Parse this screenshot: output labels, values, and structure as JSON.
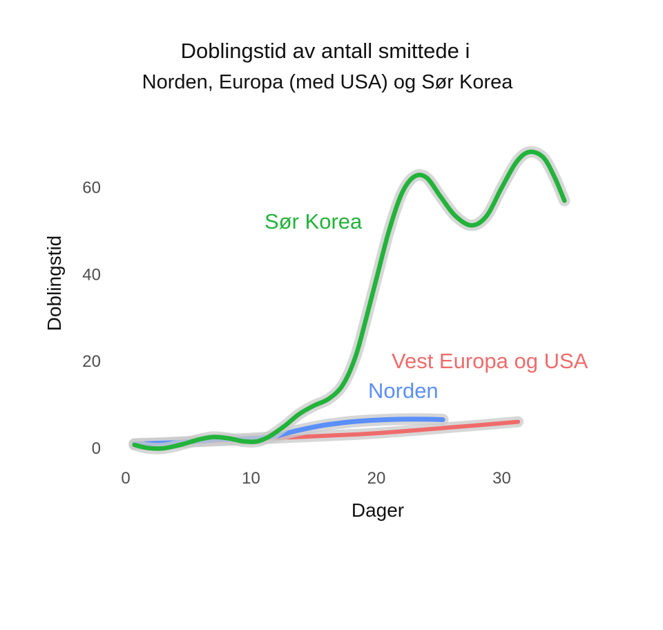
{
  "title_line1": "Doblingstid av antall smittede i",
  "title_line2": "Norden, Europa (med USA) og Sør Korea",
  "chart_data": {
    "type": "line",
    "title": "Doblingstid av antall smittede i Norden, Europa (med USA) og Sør Korea",
    "xlabel": "Dager",
    "ylabel": "Doblingstid",
    "xlim": [
      -0.5,
      36
    ],
    "ylim": [
      -3,
      71
    ],
    "xticks": [
      0,
      10,
      20,
      30
    ],
    "yticks": [
      0,
      20,
      40,
      60
    ],
    "xtick_labels": [
      "0",
      "10",
      "20",
      "30"
    ],
    "ytick_labels": [
      "0",
      "20",
      "40",
      "60"
    ],
    "grid": false,
    "legend": "direct labels on lines",
    "series": [
      {
        "name": "Sør Korea",
        "color": "#22b33a",
        "x": [
          0.7,
          1.7,
          3.0,
          4.5,
          5.8,
          7.0,
          8.2,
          9.4,
          10.5,
          11.5,
          12.7,
          13.8,
          15.0,
          16.2,
          17.3,
          18.3,
          19.1,
          20.0,
          21.0,
          22.0,
          23.0,
          24.0,
          25.1,
          26.3,
          27.6,
          28.8,
          30.0,
          31.2,
          32.2,
          33.3,
          34.2,
          35.0
        ],
        "values": [
          0.8,
          0.1,
          0.0,
          0.9,
          2.0,
          2.6,
          2.3,
          1.6,
          1.6,
          2.8,
          5.2,
          7.8,
          9.8,
          11.4,
          14.5,
          20.8,
          29.0,
          39.0,
          50.0,
          58.5,
          62.5,
          62.3,
          58.0,
          53.5,
          51.3,
          53.5,
          60.0,
          66.0,
          68.2,
          67.0,
          62.5,
          57.0
        ]
      },
      {
        "name": "Norden",
        "color": "#5b8ff9",
        "x": [
          0.7,
          3.0,
          5.0,
          7.0,
          9.0,
          11.0,
          12.0,
          13.0,
          14.5,
          16.0,
          18.0,
          20.0,
          22.0,
          24.0,
          25.3
        ],
        "values": [
          1.0,
          1.2,
          1.5,
          1.9,
          2.1,
          2.4,
          2.8,
          3.6,
          4.6,
          5.4,
          6.1,
          6.5,
          6.7,
          6.7,
          6.6
        ]
      },
      {
        "name": "Vest Europa og USA",
        "color": "#ef6b6b",
        "x": [
          0.7,
          3.0,
          6.0,
          9.0,
          11.0,
          13.0,
          16.0,
          19.0,
          22.0,
          25.0,
          28.0,
          31.3
        ],
        "values": [
          1.0,
          1.2,
          1.6,
          1.9,
          2.2,
          2.5,
          2.9,
          3.3,
          3.9,
          4.6,
          5.3,
          6.1
        ]
      }
    ]
  }
}
